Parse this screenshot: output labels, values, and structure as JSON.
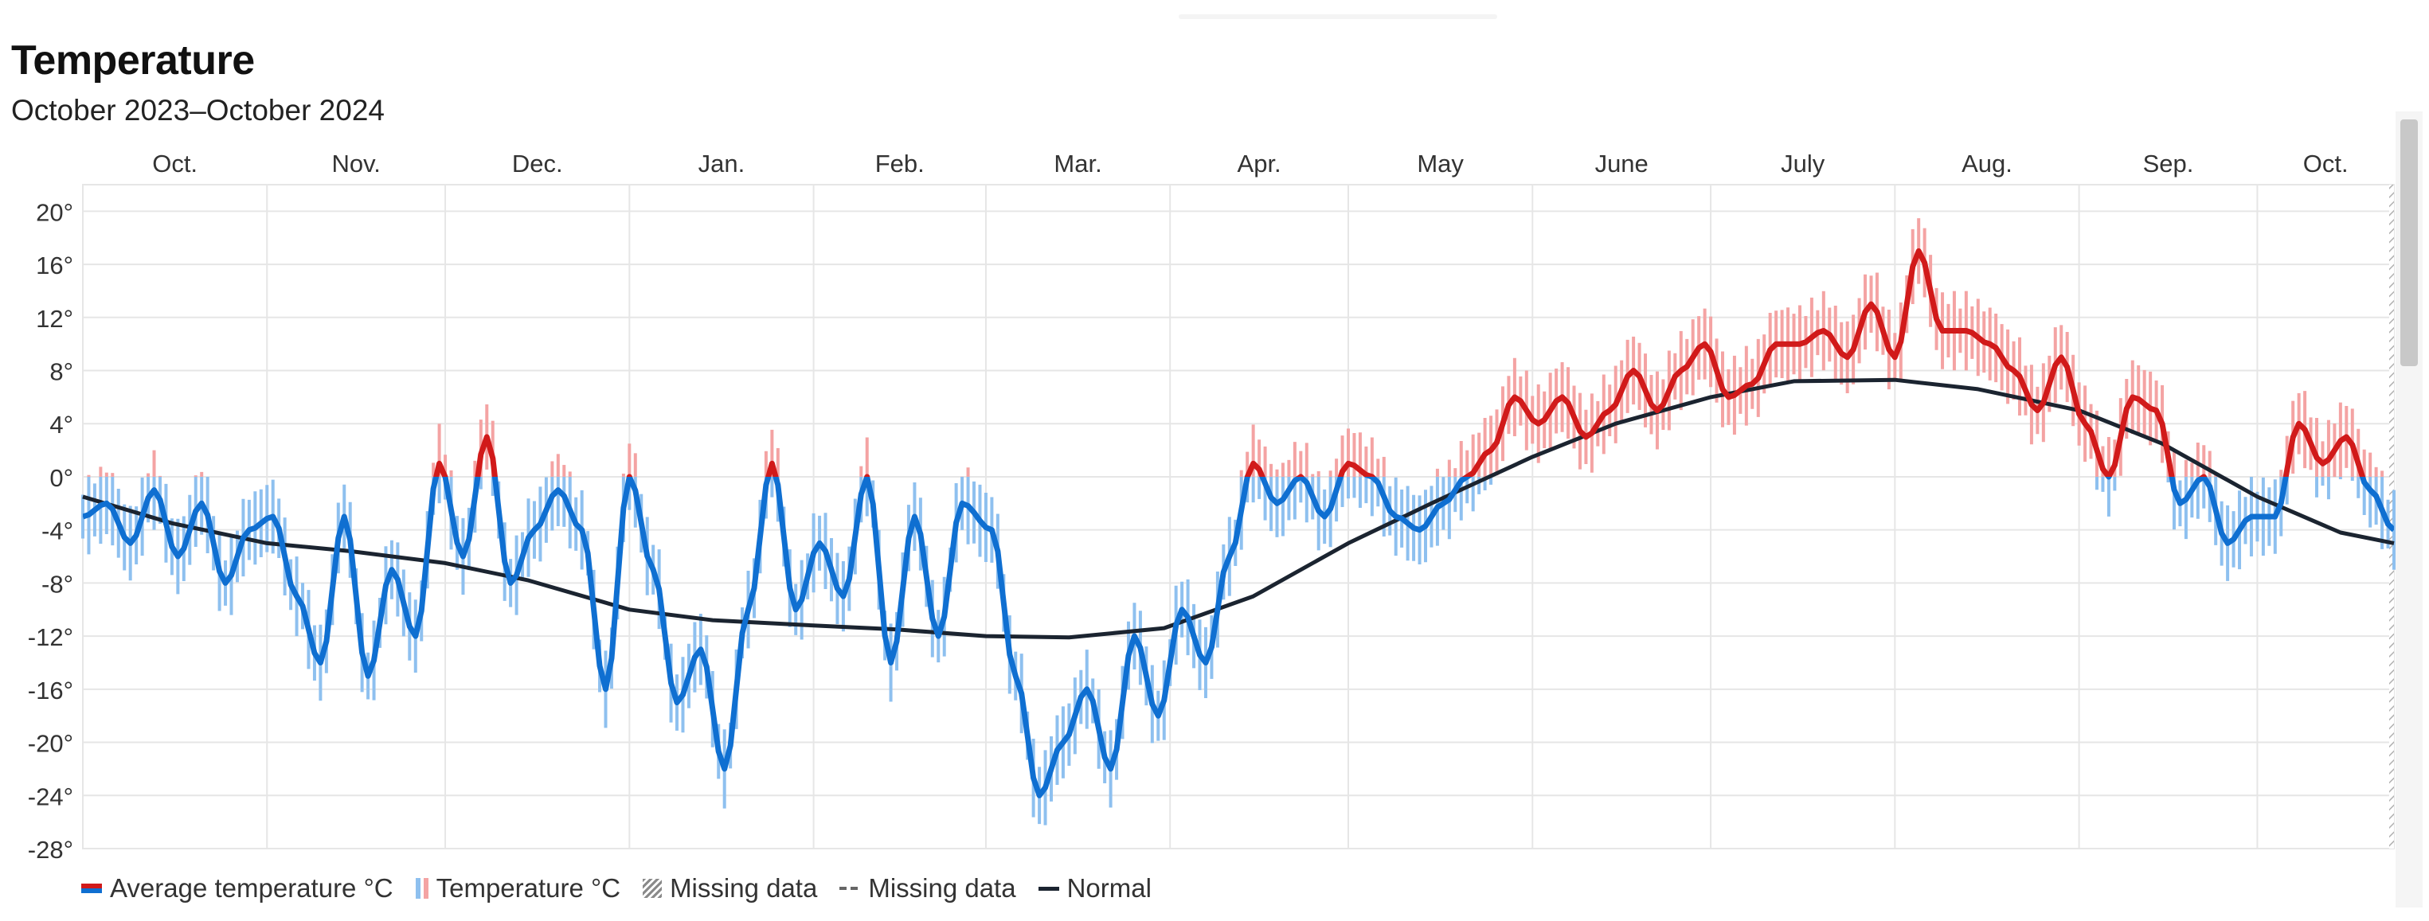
{
  "header": {
    "title": "Temperature",
    "subtitle": "October 2023–October 2024"
  },
  "chart_data": {
    "type": "line",
    "title": "Temperature",
    "subtitle": "October 2023–October 2024",
    "x_start": "2023-10-01",
    "x_end": "2024-10-24",
    "x_tick_labels": [
      "Oct.",
      "Nov.",
      "Dec.",
      "Jan.",
      "Feb.",
      "Mar.",
      "Apr.",
      "May",
      "June",
      "July",
      "Aug.",
      "Sep.",
      "Oct."
    ],
    "y_ticks": [
      20,
      16,
      12,
      8,
      4,
      0,
      -4,
      -8,
      -12,
      -16,
      -20,
      -24,
      -28
    ],
    "y_tick_labels": [
      "20°",
      "16°",
      "12°",
      "8°",
      "4°",
      "0°",
      "-4°",
      "-8°",
      "-12°",
      "-16°",
      "-20°",
      "-24°",
      "-28°"
    ],
    "ylim": [
      -28,
      22
    ],
    "grid": true,
    "legend_position": "bottom-left",
    "colors": {
      "above_zero": "#d11a1a",
      "below_zero": "#0f6fd1",
      "range_above_zero": "#f4a3a3",
      "range_below_zero": "#8ec0ef",
      "normal": "#1b2430",
      "grid": "#e6e6e6"
    },
    "series": [
      {
        "name": "Average temperature °C",
        "points": [
          [
            "2023-10-01",
            -3
          ],
          [
            "2023-10-05",
            -2
          ],
          [
            "2023-10-09",
            -5
          ],
          [
            "2023-10-13",
            -1
          ],
          [
            "2023-10-17",
            -6
          ],
          [
            "2023-10-21",
            -2
          ],
          [
            "2023-10-25",
            -8
          ],
          [
            "2023-10-29",
            -4
          ],
          [
            "2023-11-02",
            -3
          ],
          [
            "2023-11-06",
            -9
          ],
          [
            "2023-11-10",
            -14
          ],
          [
            "2023-11-14",
            -3
          ],
          [
            "2023-11-18",
            -15
          ],
          [
            "2023-11-22",
            -7
          ],
          [
            "2023-11-26",
            -12
          ],
          [
            "2023-11-30",
            1
          ],
          [
            "2023-12-04",
            -6
          ],
          [
            "2023-12-08",
            3
          ],
          [
            "2023-12-12",
            -8
          ],
          [
            "2023-12-16",
            -4
          ],
          [
            "2023-12-20",
            -1
          ],
          [
            "2023-12-24",
            -4
          ],
          [
            "2023-12-28",
            -16
          ],
          [
            "2024-01-01",
            0
          ],
          [
            "2024-01-05",
            -7
          ],
          [
            "2024-01-09",
            -17
          ],
          [
            "2024-01-13",
            -13
          ],
          [
            "2024-01-17",
            -22
          ],
          [
            "2024-01-21",
            -10
          ],
          [
            "2024-01-25",
            1
          ],
          [
            "2024-01-29",
            -10
          ],
          [
            "2024-02-02",
            -5
          ],
          [
            "2024-02-06",
            -9
          ],
          [
            "2024-02-10",
            0
          ],
          [
            "2024-02-14",
            -14
          ],
          [
            "2024-02-18",
            -3
          ],
          [
            "2024-02-22",
            -12
          ],
          [
            "2024-02-26",
            -2
          ],
          [
            "2024-03-02",
            -4
          ],
          [
            "2024-03-06",
            -15
          ],
          [
            "2024-03-10",
            -24
          ],
          [
            "2024-03-14",
            -20
          ],
          [
            "2024-03-18",
            -16
          ],
          [
            "2024-03-22",
            -22
          ],
          [
            "2024-03-26",
            -12
          ],
          [
            "2024-03-30",
            -18
          ],
          [
            "2024-04-03",
            -10
          ],
          [
            "2024-04-07",
            -14
          ],
          [
            "2024-04-11",
            -6
          ],
          [
            "2024-04-15",
            1
          ],
          [
            "2024-04-19",
            -2
          ],
          [
            "2024-04-23",
            0
          ],
          [
            "2024-04-27",
            -3
          ],
          [
            "2024-05-01",
            1
          ],
          [
            "2024-05-05",
            0
          ],
          [
            "2024-05-09",
            -3
          ],
          [
            "2024-05-13",
            -4
          ],
          [
            "2024-05-17",
            -2
          ],
          [
            "2024-05-21",
            0
          ],
          [
            "2024-05-25",
            2
          ],
          [
            "2024-05-29",
            6
          ],
          [
            "2024-06-02",
            4
          ],
          [
            "2024-06-06",
            6
          ],
          [
            "2024-06-10",
            3
          ],
          [
            "2024-06-14",
            5
          ],
          [
            "2024-06-18",
            8
          ],
          [
            "2024-06-22",
            5
          ],
          [
            "2024-06-26",
            8
          ],
          [
            "2024-06-30",
            10
          ],
          [
            "2024-07-04",
            6
          ],
          [
            "2024-07-08",
            7
          ],
          [
            "2024-07-12",
            10
          ],
          [
            "2024-07-16",
            10
          ],
          [
            "2024-07-20",
            11
          ],
          [
            "2024-07-24",
            9
          ],
          [
            "2024-07-28",
            13
          ],
          [
            "2024-08-01",
            9
          ],
          [
            "2024-08-05",
            17
          ],
          [
            "2024-08-09",
            11
          ],
          [
            "2024-08-13",
            11
          ],
          [
            "2024-08-17",
            10
          ],
          [
            "2024-08-21",
            8
          ],
          [
            "2024-08-25",
            5
          ],
          [
            "2024-08-29",
            9
          ],
          [
            "2024-09-02",
            4
          ],
          [
            "2024-09-06",
            0
          ],
          [
            "2024-09-10",
            6
          ],
          [
            "2024-09-14",
            5
          ],
          [
            "2024-09-18",
            -2
          ],
          [
            "2024-09-22",
            0
          ],
          [
            "2024-09-26",
            -5
          ],
          [
            "2024-09-30",
            -3
          ],
          [
            "2024-10-04",
            -3
          ],
          [
            "2024-10-08",
            4
          ],
          [
            "2024-10-12",
            1
          ],
          [
            "2024-10-16",
            3
          ],
          [
            "2024-10-20",
            -1
          ],
          [
            "2024-10-24",
            -4
          ]
        ]
      },
      {
        "name": "Temperature °C",
        "range_halfwidth": 3
      },
      {
        "name": "Normal",
        "points": [
          [
            "2023-10-01",
            -1.5
          ],
          [
            "2023-10-16",
            -3.5
          ],
          [
            "2023-11-01",
            -5
          ],
          [
            "2023-11-15",
            -5.6
          ],
          [
            "2023-12-01",
            -6.5
          ],
          [
            "2023-12-15",
            -7.8
          ],
          [
            "2024-01-01",
            -10
          ],
          [
            "2024-01-15",
            -10.8
          ],
          [
            "2024-02-01",
            -11.2
          ],
          [
            "2024-02-15",
            -11.5
          ],
          [
            "2024-03-01",
            -12
          ],
          [
            "2024-03-15",
            -12.1
          ],
          [
            "2024-03-31",
            -11.4
          ],
          [
            "2024-04-15",
            -9
          ],
          [
            "2024-05-01",
            -5
          ],
          [
            "2024-05-15",
            -2
          ],
          [
            "2024-06-01",
            1.5
          ],
          [
            "2024-06-15",
            4
          ],
          [
            "2024-07-01",
            6
          ],
          [
            "2024-07-15",
            7.2
          ],
          [
            "2024-08-01",
            7.3
          ],
          [
            "2024-08-15",
            6.6
          ],
          [
            "2024-09-01",
            5
          ],
          [
            "2024-09-15",
            2.5
          ],
          [
            "2024-10-01",
            -1.5
          ],
          [
            "2024-10-15",
            -4.2
          ],
          [
            "2024-10-24",
            -5
          ]
        ]
      }
    ]
  },
  "legend": {
    "avg_label": "Average temperature °C",
    "temp_label": "Temperature °C",
    "missing_hatch_label": "Missing data",
    "missing_dash_label": "Missing data",
    "normal_label": "Normal"
  }
}
